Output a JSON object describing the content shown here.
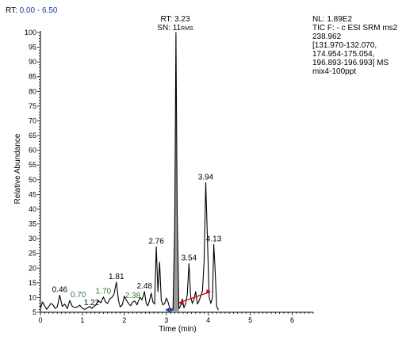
{
  "header": {
    "rt_prefix": "RT:",
    "rt_range": "0.00 - 6.50"
  },
  "info": {
    "lines": [
      "NL: 1.89E2",
      "TIC F: - c ESI SRM ms2",
      "238.962",
      "[131.970-132.070,",
      "174.954-175.054,",
      "196.893-196.993]  MS",
      "mix4-100ppt"
    ]
  },
  "top_label": {
    "rt": "RT: 3.23",
    "sn_prefix": "SN: 11",
    "sn_suffix": "RMS"
  },
  "colors": {
    "trace": "#000000",
    "fill": "#9a9a9a",
    "green": "#2e7d32",
    "blue": "#1a3d99",
    "red": "#d40000",
    "range_text": "#1a3d99"
  },
  "chart_data": {
    "type": "line",
    "xlabel": "Time (min)",
    "ylabel": "Relative Abundance",
    "xlim": [
      0,
      6.5
    ],
    "ylim": [
      5,
      100
    ],
    "xticks": [
      "0",
      "1",
      "2",
      "3",
      "4",
      "5",
      "6"
    ],
    "yticks": [
      "5",
      "10",
      "15",
      "20",
      "25",
      "30",
      "35",
      "40",
      "45",
      "50",
      "55",
      "60",
      "65",
      "70",
      "75",
      "80",
      "85",
      "90",
      "95",
      "100"
    ],
    "series": [
      {
        "x": [
          0.0,
          0.05,
          0.1,
          0.15,
          0.2,
          0.25,
          0.3,
          0.35,
          0.4,
          0.46,
          0.52,
          0.58,
          0.64,
          0.7,
          0.76,
          0.82,
          0.88,
          0.94,
          1.0,
          1.06,
          1.12,
          1.18,
          1.22,
          1.26,
          1.32,
          1.38,
          1.44,
          1.5,
          1.55,
          1.6,
          1.65,
          1.7,
          1.75,
          1.81,
          1.86,
          1.9,
          1.95,
          2.0,
          2.05,
          2.1,
          2.15,
          2.2,
          2.25,
          2.3,
          2.34,
          2.38,
          2.42,
          2.48,
          2.52,
          2.56,
          2.6,
          2.64,
          2.68,
          2.72,
          2.76,
          2.8,
          2.84,
          2.88,
          2.92,
          2.96,
          3.0,
          3.04,
          3.08,
          3.12,
          3.16,
          3.2,
          3.23,
          3.26,
          3.3,
          3.34,
          3.38,
          3.42,
          3.46,
          3.5,
          3.54,
          3.58,
          3.62,
          3.66,
          3.7,
          3.74,
          3.78,
          3.82,
          3.86,
          3.9,
          3.94,
          3.98,
          4.02,
          4.06,
          4.1,
          4.13,
          4.16,
          4.2,
          4.24
        ],
        "y": [
          6.2,
          8.5,
          7.2,
          6.0,
          7.0,
          8.0,
          7.5,
          6.3,
          6.8,
          10.8,
          7.0,
          7.8,
          6.2,
          9.0,
          7.0,
          6.6,
          6.8,
          7.4,
          6.3,
          6.0,
          6.5,
          7.0,
          6.3,
          6.8,
          7.5,
          9.0,
          8.2,
          10.2,
          8.5,
          8.0,
          9.5,
          10.0,
          11.0,
          15.2,
          9.0,
          6.8,
          7.5,
          10.5,
          9.0,
          8.0,
          7.2,
          8.5,
          8.8,
          7.5,
          9.0,
          10.0,
          9.2,
          12.0,
          8.0,
          7.2,
          9.0,
          11.5,
          8.5,
          7.8,
          27.2,
          12.0,
          22.0,
          9.0,
          7.5,
          8.0,
          9.8,
          8.5,
          6.5,
          5.8,
          6.2,
          35.0,
          100.0,
          38.0,
          6.2,
          7.2,
          9.5,
          6.5,
          8.0,
          11.0,
          21.5,
          10.2,
          8.0,
          9.5,
          12.0,
          7.8,
          8.8,
          10.5,
          12.2,
          22.0,
          49.0,
          30.0,
          10.2,
          8.0,
          10.0,
          28.0,
          20.0,
          7.0,
          5.8
        ]
      }
    ],
    "peak_labels": [
      {
        "text": "0.46",
        "x": 0.46,
        "y": 10.8,
        "color": "black"
      },
      {
        "text": "0.70",
        "x": 0.9,
        "y": 9.0,
        "color": "green"
      },
      {
        "text": "1.22",
        "x": 1.22,
        "y": 6.3,
        "color": "black"
      },
      {
        "text": "1.70",
        "x": 1.5,
        "y": 10.2,
        "color": "green"
      },
      {
        "text": "1.81",
        "x": 1.81,
        "y": 15.2,
        "color": "black"
      },
      {
        "text": "2.38",
        "x": 2.2,
        "y": 8.8,
        "color": "green"
      },
      {
        "text": "2.48",
        "x": 2.48,
        "y": 12.0,
        "color": "black"
      },
      {
        "text": "2.76",
        "x": 2.76,
        "y": 27.2,
        "color": "black"
      },
      {
        "text": "3.54",
        "x": 3.54,
        "y": 21.5,
        "color": "black"
      },
      {
        "text": "3.94",
        "x": 3.94,
        "y": 49.0,
        "color": "black"
      },
      {
        "text": "4.13",
        "x": 4.13,
        "y": 28.0,
        "color": "black"
      }
    ],
    "noise_segments": [
      {
        "color": "blue",
        "x1": 2.98,
        "y1": 5.8,
        "x2": 3.18,
        "y2": 5.8
      },
      {
        "color": "red",
        "x1": 3.3,
        "y1": 8.2,
        "x2": 4.05,
        "y2": 12.0
      }
    ],
    "fill_range": [
      3.16,
      3.3
    ]
  }
}
